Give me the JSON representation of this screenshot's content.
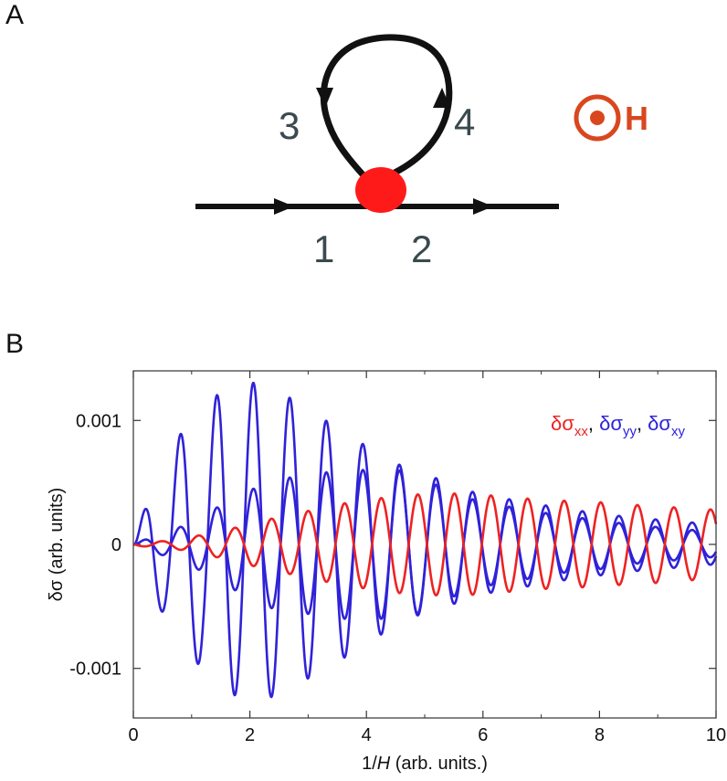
{
  "panels": {
    "a_label": "A",
    "b_label": "B"
  },
  "diagram": {
    "labels": [
      "1",
      "2",
      "3",
      "4"
    ],
    "field_label": "H",
    "line_color": "#111111",
    "vertex_color": "#ff1a1a",
    "label_color": "#3a4a4e",
    "field_color": "#d9471f"
  },
  "chart_data": {
    "type": "line",
    "xlabel_prefix": "1/",
    "xlabel_var": "H",
    "xlabel_suffix": " (arb. units.)",
    "ylabel": "δσ (arb. units)",
    "xlim": [
      0,
      10
    ],
    "ylim": [
      -0.0014,
      0.0014
    ],
    "xticks": [
      0,
      2,
      4,
      6,
      8,
      10
    ],
    "yticks": [
      {
        "value": 0.001,
        "label": "0.001"
      },
      {
        "value": 0,
        "label": "0"
      },
      {
        "value": -0.001,
        "label": "-0.001"
      }
    ],
    "grid": false,
    "legend_position": "top-right",
    "legend": [
      {
        "base": "δσ",
        "sub": "xx",
        "color": "#ee2222",
        "sep": ", "
      },
      {
        "base": "δσ",
        "sub": "yy",
        "color": "#2f22d8",
        "sep": ", "
      },
      {
        "base": "δσ",
        "sub": "xy",
        "color": "#2f22d8",
        "sep": ""
      }
    ],
    "series": [
      {
        "name": "δσxx",
        "color": "#ee2222",
        "x": [
          0,
          0.3,
          0.6,
          0.9,
          1.2,
          1.5,
          1.8,
          2.1,
          2.4,
          2.7,
          3.0,
          3.3,
          3.6,
          3.9,
          4.2,
          4.5,
          4.8,
          5.1,
          5.4,
          5.7,
          6.0,
          6.5,
          7.0,
          7.5,
          8.0,
          8.5,
          9.0,
          9.5,
          10.0
        ],
        "amp": [
          1e-05,
          2e-05,
          3e-05,
          5e-05,
          8e-05,
          0.00011,
          0.00014,
          0.00018,
          0.00021,
          0.00024,
          0.00027,
          0.0003,
          0.00033,
          0.00035,
          0.00037,
          0.00039,
          0.0004,
          0.00041,
          0.00041,
          0.00041,
          0.0004,
          0.00038,
          0.00036,
          0.00035,
          0.00034,
          0.00032,
          0.00031,
          0.00029,
          0.00028
        ],
        "phase_sign": -1
      },
      {
        "name": "δσyy",
        "color": "#2f22d8",
        "x": [
          0,
          0.3,
          0.6,
          0.9,
          1.2,
          1.5,
          1.8,
          2.1,
          2.4,
          2.7,
          3.0,
          3.3,
          3.6,
          3.9,
          4.2,
          4.5,
          4.8,
          5.1,
          5.4,
          5.7,
          6.0,
          6.5,
          7.0,
          7.5,
          8.0,
          8.5,
          9.0,
          9.5,
          10.0
        ],
        "amp": [
          0.0,
          0.00044,
          0.0006,
          0.00102,
          0.00094,
          0.00128,
          0.0012,
          0.00132,
          0.00122,
          0.00118,
          0.00108,
          0.001,
          0.00092,
          0.00082,
          0.00074,
          0.00066,
          0.00058,
          0.0005,
          0.00044,
          0.00038,
          0.00034,
          0.0003,
          0.00026,
          0.00022,
          0.0002,
          0.00016,
          0.00014,
          0.00012,
          0.0001
        ],
        "phase_sign": 1
      },
      {
        "name": "δσxy",
        "color": "#2f22d8",
        "x": [
          0,
          0.3,
          0.6,
          0.9,
          1.2,
          1.5,
          1.8,
          2.1,
          2.4,
          2.7,
          3.0,
          3.3,
          3.6,
          3.9,
          4.2,
          4.5,
          4.8,
          5.1,
          5.4,
          5.7,
          6.0,
          6.5,
          7.0,
          7.5,
          8.0,
          8.5,
          9.0,
          9.5,
          10.0
        ],
        "amp": [
          0.0,
          6e-05,
          0.0001,
          0.00016,
          0.00022,
          0.00032,
          0.00038,
          0.00046,
          0.00052,
          0.00054,
          0.00056,
          0.00058,
          0.0006,
          0.0006,
          0.0006,
          0.0006,
          0.00058,
          0.00055,
          0.0005,
          0.00044,
          0.0004,
          0.00036,
          0.00032,
          0.00028,
          0.00025,
          0.00022,
          0.0002,
          0.00018,
          0.00016
        ],
        "phase_sign": 1
      }
    ]
  }
}
